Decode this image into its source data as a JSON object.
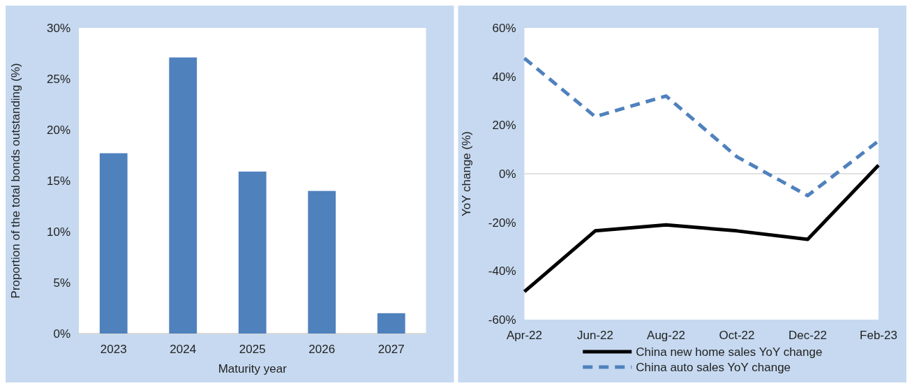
{
  "chart_data": [
    {
      "type": "bar",
      "xlabel": "Maturity year",
      "ylabel": "Proportion of the total bonds outstanding (%)",
      "categories": [
        "2023",
        "2024",
        "2025",
        "2026",
        "2027"
      ],
      "values": [
        17.7,
        27.1,
        15.9,
        14.0,
        2.0
      ],
      "color": "#4f81bd",
      "ylim": [
        0,
        30
      ],
      "yticks": [
        {
          "value": 0,
          "label": "0%"
        },
        {
          "value": 5,
          "label": "5%"
        },
        {
          "value": 10,
          "label": "10%"
        },
        {
          "value": 15,
          "label": "15%"
        },
        {
          "value": 20,
          "label": "20%"
        },
        {
          "value": 25,
          "label": "25%"
        },
        {
          "value": 30,
          "label": "30%"
        }
      ],
      "grid": false
    },
    {
      "type": "line",
      "ylabel": "YoY change (%)",
      "categories": [
        "Apr-22",
        "Jun-22",
        "Aug-22",
        "Oct-22",
        "Dec-22",
        "Feb-23"
      ],
      "series": [
        {
          "name": "China new home sales YoY change",
          "color": "#000000",
          "line_style": "solid",
          "values": [
            -48.5,
            -23.5,
            -21,
            -23.5,
            -27,
            3.5
          ]
        },
        {
          "name": "China auto sales YoY change",
          "color": "#4f81bd",
          "line_style": "dashed",
          "values": [
            47.5,
            23.5,
            32,
            7,
            -9,
            13.5
          ]
        }
      ],
      "ylim": [
        -60,
        60
      ],
      "yticks": [
        {
          "value": -60,
          "label": "-60%"
        },
        {
          "value": -40,
          "label": "-40%"
        },
        {
          "value": -20,
          "label": "-20%"
        },
        {
          "value": 0,
          "label": "0%"
        },
        {
          "value": 20,
          "label": "20%"
        },
        {
          "value": 40,
          "label": "40%"
        },
        {
          "value": 60,
          "label": "60%"
        }
      ],
      "ref_lines": [
        {
          "axis": "y",
          "value": 0,
          "color": "#d9d9d9"
        }
      ],
      "grid": false,
      "legend": "bottom"
    }
  ]
}
